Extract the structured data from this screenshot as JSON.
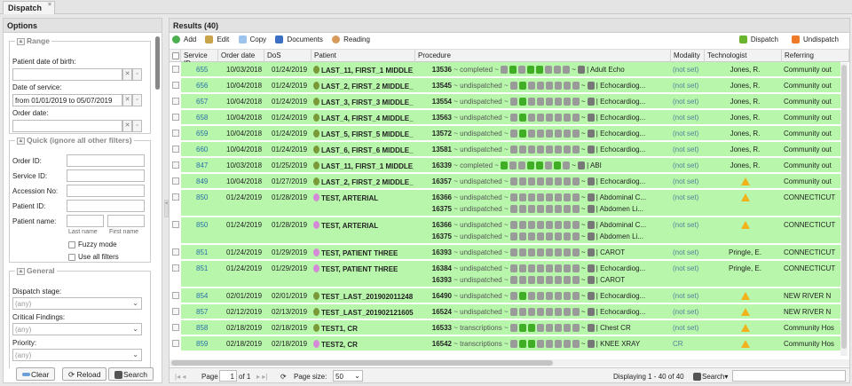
{
  "tab": {
    "title": "Dispatch",
    "close": "×"
  },
  "options": {
    "title": "Options",
    "range": {
      "legend": "Range",
      "dob_label": "Patient date of birth:",
      "dob_value": "",
      "dos_label": "Date of service:",
      "dos_value": "from 01/01/2019 to 05/07/2019",
      "order_label": "Order date:",
      "order_value": ""
    },
    "quick": {
      "legend": "Quick (ignore all other filters)",
      "order_id": "Order ID:",
      "service_id": "Service ID:",
      "accession": "Accession No:",
      "patient_id": "Patient ID:",
      "patient_name": "Patient name:",
      "last_name": "Last name",
      "first_name": "First name",
      "fuzzy": "Fuzzy mode",
      "use_all": "Use all filters"
    },
    "general": {
      "legend": "General",
      "dispatch_stage": "Dispatch stage:",
      "dispatch_value": "(any)",
      "critical": "Critical Findings:",
      "critical_value": "(any)",
      "priority": "Priority:",
      "priority_value": "(any)"
    },
    "buttons": {
      "clear": "Clear",
      "reload": "Reload",
      "search": "Search"
    }
  },
  "results": {
    "title": "Results (40)",
    "toolbar": {
      "add": "Add",
      "edit": "Edit",
      "copy": "Copy",
      "documents": "Documents",
      "reading": "Reading",
      "dispatch": "Dispatch",
      "undispatch": "Undispatch"
    },
    "columns": [
      "Service ID",
      "Order date",
      "DoS",
      "Patient",
      "Procedure",
      "Modality",
      "Technologist",
      "Referring"
    ],
    "icons": [
      "thumb",
      "eye",
      "person",
      "folder",
      "document",
      "pen",
      "phone",
      "hand",
      "device"
    ],
    "rows": [
      {
        "id": "655",
        "order": "10/03/2018",
        "dos": "01/24/2019",
        "patient": "LAST_11, FIRST_1 MIDDLE_",
        "gender": "male",
        "procs": [
          {
            "num": "13536",
            "status": "completed",
            "on": [
              1,
              3,
              4
            ],
            "name": "Adult Echo"
          }
        ],
        "modality": "(not set)",
        "tech": "Jones, R.",
        "ref": "Community out"
      },
      {
        "id": "656",
        "order": "10/04/2018",
        "dos": "01/24/2019",
        "patient": "LAST_2, FIRST_2 MIDDLE_",
        "gender": "male",
        "procs": [
          {
            "num": "13545",
            "status": "undispatched",
            "on": [
              1
            ],
            "name": "Echocardiog..."
          }
        ],
        "modality": "(not set)",
        "tech": "Jones, R.",
        "ref": "Community out"
      },
      {
        "id": "657",
        "order": "10/04/2018",
        "dos": "01/24/2019",
        "patient": "LAST_3, FIRST_3 MIDDLE_",
        "gender": "male",
        "procs": [
          {
            "num": "13554",
            "status": "undispatched",
            "on": [
              1
            ],
            "name": "Echocardiog..."
          }
        ],
        "modality": "(not set)",
        "tech": "Jones, R.",
        "ref": "Community out"
      },
      {
        "id": "658",
        "order": "10/04/2018",
        "dos": "01/24/2019",
        "patient": "LAST_4, FIRST_4 MIDDLE_",
        "gender": "male",
        "procs": [
          {
            "num": "13563",
            "status": "undispatched",
            "on": [
              1
            ],
            "name": "Echocardiog..."
          }
        ],
        "modality": "(not set)",
        "tech": "Jones, R.",
        "ref": "Community out"
      },
      {
        "id": "659",
        "order": "10/04/2018",
        "dos": "01/24/2019",
        "patient": "LAST_5, FIRST_5 MIDDLE_",
        "gender": "male",
        "procs": [
          {
            "num": "13572",
            "status": "undispatched",
            "on": [
              1
            ],
            "name": "Echocardiog..."
          }
        ],
        "modality": "(not set)",
        "tech": "Jones, R.",
        "ref": "Community out"
      },
      {
        "id": "660",
        "order": "10/04/2018",
        "dos": "01/24/2019",
        "patient": "LAST_6, FIRST_6 MIDDLE_",
        "gender": "male",
        "procs": [
          {
            "num": "13581",
            "status": "undispatched",
            "on": [],
            "name": "Echocardiog..."
          }
        ],
        "modality": "(not set)",
        "tech": "Jones, R.",
        "ref": "Community out"
      },
      {
        "id": "847",
        "order": "10/03/2018",
        "dos": "01/25/2019",
        "patient": "LAST_11, FIRST_1 MIDDLE_",
        "gender": "male",
        "procs": [
          {
            "num": "16339",
            "status": "completed",
            "on": [
              0,
              3,
              4,
              6
            ],
            "name": "ABI"
          }
        ],
        "modality": "(not set)",
        "tech": "Jones, R.",
        "ref": "Community out"
      },
      {
        "id": "849",
        "order": "10/04/2018",
        "dos": "01/27/2019",
        "patient": "LAST_2, FIRST_2 MIDDLE_",
        "gender": "male",
        "procs": [
          {
            "num": "16357",
            "status": "undispatched",
            "on": [],
            "name": "Echocardiog..."
          }
        ],
        "modality": "(not set)",
        "tech": "warning",
        "ref": "Community out"
      },
      {
        "id": "850",
        "order": "01/24/2019",
        "dos": "01/28/2019",
        "patient": "TEST, ARTERIAL",
        "gender": "female",
        "procs": [
          {
            "num": "16366",
            "status": "undispatched",
            "on": [],
            "name": "Abdominal C..."
          },
          {
            "num": "16375",
            "status": "undispatched",
            "on": [],
            "name": "Abdomen Li..."
          }
        ],
        "modality": "(not set)",
        "tech": "warning",
        "ref": "CONNECTICUT"
      },
      {
        "id": "850",
        "order": "01/24/2019",
        "dos": "01/28/2019",
        "patient": "TEST, ARTERIAL",
        "gender": "female",
        "procs": [
          {
            "num": "16366",
            "status": "undispatched",
            "on": [],
            "name": "Abdominal C..."
          },
          {
            "num": "16375",
            "status": "undispatched",
            "on": [],
            "name": "Abdomen Li..."
          }
        ],
        "modality": "(not set)",
        "tech": "warning",
        "ref": "CONNECTICUT"
      },
      {
        "id": "851",
        "order": "01/24/2019",
        "dos": "01/29/2019",
        "patient": "TEST, PATIENT THREE",
        "gender": "female",
        "procs": [
          {
            "num": "16393",
            "status": "undispatched",
            "on": [],
            "name": "CAROT"
          }
        ],
        "modality": "(not set)",
        "tech": "Pringle, E.",
        "ref": "CONNECTICUT"
      },
      {
        "id": "851",
        "order": "01/24/2019",
        "dos": "01/29/2019",
        "patient": "TEST, PATIENT THREE",
        "gender": "female",
        "procs": [
          {
            "num": "16384",
            "status": "undispatched",
            "on": [],
            "name": "Echocardiog..."
          },
          {
            "num": "16393",
            "status": "undispatched",
            "on": [],
            "name": "CAROT"
          }
        ],
        "modality": "(not set)",
        "tech": "Pringle, E.",
        "ref": "CONNECTICUT"
      },
      {
        "id": "854",
        "order": "02/01/2019",
        "dos": "02/01/2019",
        "patient": "TEST_LAST_201902011248",
        "gender": "male",
        "procs": [
          {
            "num": "16490",
            "status": "undispatched",
            "on": [
              1
            ],
            "name": "Echocardiog..."
          }
        ],
        "modality": "(not set)",
        "tech": "warning",
        "ref": "NEW RIVER N"
      },
      {
        "id": "857",
        "order": "02/12/2019",
        "dos": "02/13/2019",
        "patient": "TEST_LAST_201902121605",
        "gender": "male",
        "procs": [
          {
            "num": "16524",
            "status": "undispatched",
            "on": [],
            "name": "Echocardiog..."
          }
        ],
        "modality": "(not set)",
        "tech": "warning",
        "ref": "NEW RIVER N"
      },
      {
        "id": "858",
        "order": "02/18/2019",
        "dos": "02/18/2019",
        "patient": "TEST1, CR",
        "gender": "male",
        "procs": [
          {
            "num": "16533",
            "status": "transcriptions",
            "on": [
              1,
              2
            ],
            "name": "Chest CR"
          }
        ],
        "modality": "(not set)",
        "tech": "warning",
        "ref": "Community Hos"
      },
      {
        "id": "859",
        "order": "02/18/2019",
        "dos": "02/18/2019",
        "patient": "TEST2, CR",
        "gender": "female",
        "procs": [
          {
            "num": "16542",
            "status": "transcriptions",
            "on": [
              1,
              2
            ],
            "name": "KNEE XRAY"
          }
        ],
        "modality": "CR",
        "tech": "warning",
        "ref": "Community Hos"
      }
    ],
    "pager": {
      "page_label": "Page",
      "page": "1",
      "of": "of 1",
      "page_size_label": "Page size:",
      "page_size": "50",
      "displaying": "Displaying 1 - 40 of 40",
      "search": "Search",
      "search_value": ""
    }
  },
  "colors": {
    "row_bg": "#b8f7ab",
    "active_icon": "#3fae24",
    "link": "#2a6fa8"
  }
}
